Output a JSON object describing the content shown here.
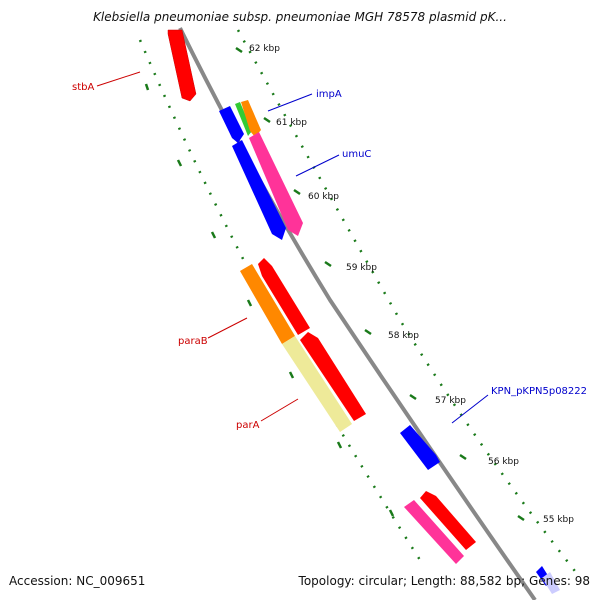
{
  "title": "Klebsiella pneumoniae subsp. pneumoniae MGH 78578 plasmid pK...",
  "footer": {
    "accession": "Accession: NC_009651",
    "topology": "Topology: circular; Length: 88,582 bp; Genes: 98"
  },
  "kbp_ticks": [
    "62 kbp",
    "61 kbp",
    "60 kbp",
    "59 kbp",
    "58 kbp",
    "57 kbp",
    "56 kbp",
    "55 kbp"
  ],
  "gene_labels": [
    {
      "text": "stbA",
      "color": "#cc0000"
    },
    {
      "text": "impA",
      "color": "#0000cc"
    },
    {
      "text": "umuC",
      "color": "#0000cc"
    },
    {
      "text": "paraB",
      "color": "#cc0000"
    },
    {
      "text": "parA",
      "color": "#cc0000"
    },
    {
      "text": "KPN_pKPN5p08222",
      "color": "#0000cc"
    }
  ],
  "colors": {
    "backbone": "#888888",
    "tick_marks": "#1a7a1a",
    "red_gene": "#ff0000",
    "blue_gene": "#0000ff",
    "orange_gene": "#ff8800",
    "green_gene": "#33cc33",
    "pink_gene": "#ff3399",
    "khaki_gene": "#eeea99",
    "lavender_gene": "#ccccff"
  }
}
